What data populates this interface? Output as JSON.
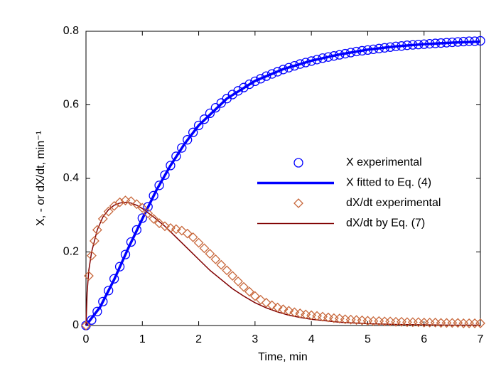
{
  "chart_data": {
    "type": "scatter-line",
    "xlabel": "Time, min",
    "ylabel": "X, - or dX/dt, min⁻¹",
    "xlim": [
      0,
      7
    ],
    "ylim": [
      0,
      0.8
    ],
    "xticks": [
      0,
      1,
      2,
      3,
      4,
      5,
      6,
      7
    ],
    "yticks": [
      0,
      0.2,
      0.4,
      0.6,
      0.8
    ],
    "grid": false,
    "legend": "right",
    "series": [
      {
        "name": "X experimental",
        "color": "#0000ff",
        "marker": "circle",
        "x": [
          0,
          0.1,
          0.2,
          0.3,
          0.4,
          0.5,
          0.6,
          0.7,
          0.8,
          0.9,
          1.0,
          1.1,
          1.2,
          1.3,
          1.4,
          1.5,
          1.6,
          1.7,
          1.8,
          1.9,
          2.0,
          2.1,
          2.2,
          2.3,
          2.4,
          2.5,
          2.6,
          2.7,
          2.8,
          2.9,
          3.0,
          3.1,
          3.2,
          3.3,
          3.4,
          3.5,
          3.6,
          3.7,
          3.8,
          3.9,
          4.0,
          4.1,
          4.2,
          4.3,
          4.4,
          4.5,
          4.6,
          4.7,
          4.8,
          4.9,
          5.0,
          5.1,
          5.2,
          5.3,
          5.4,
          5.5,
          5.6,
          5.7,
          5.8,
          5.9,
          6.0,
          6.1,
          6.2,
          6.3,
          6.4,
          6.5,
          6.6,
          6.7,
          6.8,
          6.9,
          7.0
        ],
        "values": [
          0,
          0.015,
          0.038,
          0.065,
          0.095,
          0.127,
          0.16,
          0.193,
          0.227,
          0.26,
          0.292,
          0.323,
          0.353,
          0.381,
          0.409,
          0.435,
          0.46,
          0.483,
          0.505,
          0.525,
          0.544,
          0.561,
          0.577,
          0.592,
          0.605,
          0.617,
          0.628,
          0.638,
          0.647,
          0.656,
          0.664,
          0.671,
          0.678,
          0.684,
          0.69,
          0.696,
          0.701,
          0.706,
          0.711,
          0.715,
          0.719,
          0.723,
          0.727,
          0.73,
          0.733,
          0.736,
          0.739,
          0.742,
          0.745,
          0.747,
          0.749,
          0.751,
          0.753,
          0.755,
          0.757,
          0.759,
          0.76,
          0.762,
          0.763,
          0.764,
          0.765,
          0.766,
          0.767,
          0.768,
          0.769,
          0.77,
          0.771,
          0.772,
          0.773,
          0.773,
          0.774
        ]
      },
      {
        "name": "X fitted to Eq. (4)",
        "color": "#0000ff",
        "linewidth": 3.5,
        "x": [
          0,
          0.25,
          0.5,
          0.75,
          1,
          1.25,
          1.5,
          1.75,
          2,
          2.5,
          3,
          3.5,
          4,
          4.5,
          5,
          5.5,
          6,
          6.5,
          7
        ],
        "values": [
          0,
          0.05,
          0.125,
          0.21,
          0.29,
          0.368,
          0.435,
          0.494,
          0.544,
          0.617,
          0.665,
          0.697,
          0.72,
          0.737,
          0.75,
          0.759,
          0.765,
          0.769,
          0.772
        ]
      },
      {
        "name": "dX/dt experimental",
        "color": "#c8683c",
        "marker": "diamond",
        "x": [
          0,
          0.05,
          0.1,
          0.15,
          0.2,
          0.3,
          0.4,
          0.5,
          0.6,
          0.7,
          0.8,
          0.9,
          1.0,
          1.1,
          1.2,
          1.3,
          1.4,
          1.5,
          1.6,
          1.7,
          1.8,
          1.9,
          2.0,
          2.1,
          2.2,
          2.3,
          2.4,
          2.5,
          2.6,
          2.7,
          2.8,
          2.9,
          3.0,
          3.1,
          3.2,
          3.3,
          3.4,
          3.5,
          3.6,
          3.7,
          3.8,
          3.9,
          4.0,
          4.1,
          4.2,
          4.3,
          4.4,
          4.5,
          4.6,
          4.7,
          4.8,
          4.9,
          5.0,
          5.1,
          5.2,
          5.3,
          5.4,
          5.5,
          5.6,
          5.7,
          5.8,
          5.9,
          6.0,
          6.1,
          6.2,
          6.3,
          6.4,
          6.5,
          6.6,
          6.7,
          6.8,
          6.9,
          7.0
        ],
        "values": [
          0,
          0.135,
          0.19,
          0.23,
          0.26,
          0.29,
          0.31,
          0.325,
          0.335,
          0.34,
          0.338,
          0.33,
          0.32,
          0.305,
          0.29,
          0.278,
          0.27,
          0.265,
          0.262,
          0.258,
          0.25,
          0.24,
          0.225,
          0.21,
          0.195,
          0.18,
          0.165,
          0.15,
          0.135,
          0.12,
          0.105,
          0.092,
          0.08,
          0.07,
          0.062,
          0.055,
          0.049,
          0.044,
          0.04,
          0.036,
          0.033,
          0.03,
          0.028,
          0.026,
          0.024,
          0.022,
          0.02,
          0.019,
          0.017,
          0.016,
          0.015,
          0.014,
          0.013,
          0.012,
          0.012,
          0.011,
          0.011,
          0.01,
          0.01,
          0.009,
          0.009,
          0.009,
          0.008,
          0.008,
          0.008,
          0.007,
          0.007,
          0.007,
          0.007,
          0.006,
          0.006,
          0.006,
          0.006
        ]
      },
      {
        "name": "dX/dt by Eq. (7)",
        "color": "#800000",
        "linewidth": 1.5,
        "x": [
          0,
          0.02,
          0.05,
          0.1,
          0.2,
          0.3,
          0.4,
          0.5,
          0.6,
          0.7,
          0.8,
          0.9,
          1.0,
          1.2,
          1.4,
          1.6,
          1.8,
          2.0,
          2.2,
          2.4,
          2.6,
          2.8,
          3.0,
          3.2,
          3.4,
          3.6,
          3.8,
          4.0,
          4.5,
          5,
          5.5,
          6,
          6.5,
          7
        ],
        "values": [
          0,
          0.09,
          0.15,
          0.2,
          0.26,
          0.295,
          0.315,
          0.327,
          0.333,
          0.335,
          0.333,
          0.327,
          0.318,
          0.295,
          0.27,
          0.24,
          0.21,
          0.18,
          0.15,
          0.125,
          0.1,
          0.08,
          0.062,
          0.048,
          0.037,
          0.028,
          0.022,
          0.017,
          0.009,
          0.005,
          0.003,
          0.002,
          0.001,
          0.001
        ]
      }
    ]
  }
}
